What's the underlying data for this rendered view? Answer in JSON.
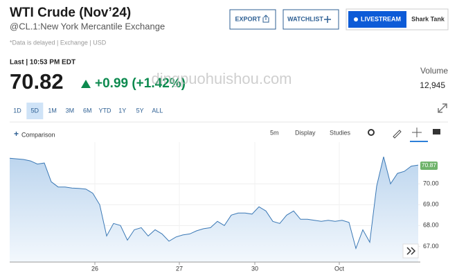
{
  "header": {
    "title": "WTI Crude (Nov’24)",
    "subtitle": "@CL.1:New York Mercantile Exchange",
    "note": "*Data is delayed | Exchange | USD",
    "buttons": [
      "EXPORT",
      "WATCHLIST",
      "LIVESTREAM",
      "Shark Tank"
    ]
  },
  "quote": {
    "last_label": "Last | 10:53 PM EDT",
    "price": "70.82",
    "change": "+0.99 (+1.42%)",
    "volume_label": "Volume",
    "volume": "12,945"
  },
  "watermark": "dingpuohuishou.com",
  "ranges": [
    "1D",
    "5D",
    "1M",
    "3M",
    "6M",
    "YTD",
    "1Y",
    "5Y",
    "ALL"
  ],
  "toolbar": {
    "comparison": "Comparison",
    "interval": "5m",
    "display": "Display",
    "studies": "Studies"
  },
  "chart_data": {
    "type": "area",
    "color": "#3a78b5",
    "x": [
      0,
      1,
      2,
      3,
      4,
      5,
      6,
      7,
      8,
      9,
      10,
      11,
      12,
      13,
      14,
      15,
      16,
      17,
      18,
      19,
      20,
      21,
      22,
      23,
      24,
      25,
      26,
      27,
      28,
      29,
      30,
      31,
      32,
      33,
      34,
      35,
      36,
      37,
      38,
      39,
      40,
      41,
      42,
      43,
      44,
      45,
      46,
      47,
      48,
      49,
      50,
      51,
      52,
      53,
      54,
      55,
      56,
      57,
      58,
      59
    ],
    "values": [
      71.23,
      71.2,
      71.17,
      71.1,
      70.95,
      71.0,
      70.1,
      69.85,
      69.85,
      69.8,
      69.78,
      69.75,
      69.55,
      69.0,
      67.5,
      68.1,
      68.0,
      67.3,
      67.8,
      67.9,
      67.5,
      67.8,
      67.6,
      67.25,
      67.45,
      67.55,
      67.6,
      67.75,
      67.85,
      67.9,
      68.2,
      68.0,
      68.5,
      68.6,
      68.6,
      68.55,
      68.9,
      68.7,
      68.2,
      68.1,
      68.5,
      68.7,
      68.3,
      68.3,
      68.25,
      68.2,
      68.25,
      68.2,
      68.25,
      68.15,
      66.9,
      67.8,
      67.2,
      69.9,
      71.3,
      70.0,
      70.5,
      70.6,
      70.85,
      70.9
    ],
    "xlim": [
      0,
      59.3
    ],
    "ylim": [
      66.25,
      72
    ],
    "xticks": [
      {
        "value": 12.3,
        "label": "26"
      },
      {
        "value": 24.5,
        "label": "27"
      },
      {
        "value": 35.4,
        "label": "30"
      },
      {
        "value": 47.6,
        "label": "Oct"
      }
    ],
    "yticks": [
      {
        "value": 67,
        "label": "67.00"
      },
      {
        "value": 68,
        "label": "68.00"
      },
      {
        "value": 69,
        "label": "69.00"
      },
      {
        "value": 70,
        "label": "70.00"
      }
    ],
    "price_tag": 70.87,
    "grid": true
  }
}
